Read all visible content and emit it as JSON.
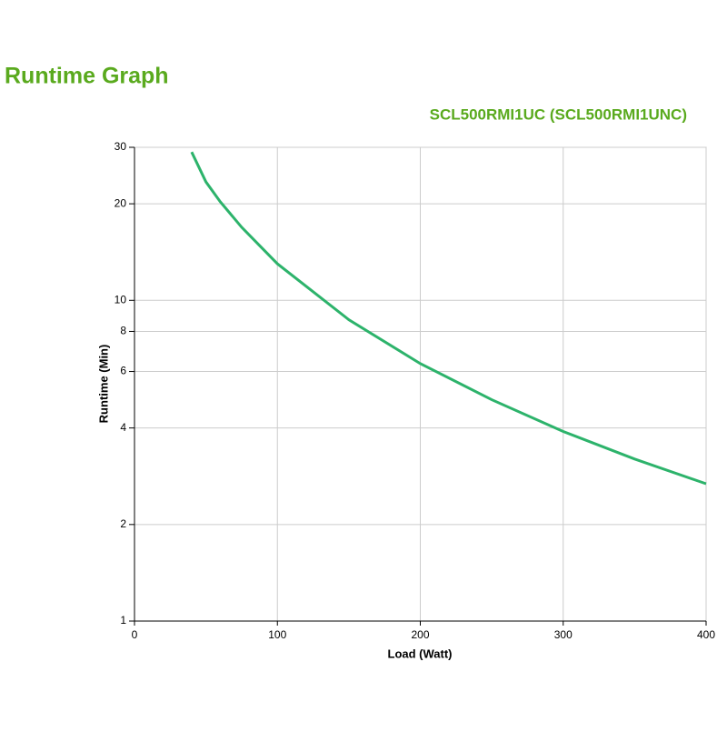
{
  "chart_data": {
    "type": "line",
    "title": "Runtime Graph",
    "subtitle": "SCL500RMI1UC (SCL500RMI1UNC)",
    "x_label": "Load (Watt)",
    "y_label": "Runtime (Min)",
    "x": [
      40,
      50,
      60,
      75,
      100,
      150,
      200,
      250,
      300,
      350,
      400
    ],
    "values": [
      29,
      23.4,
      20.3,
      16.9,
      13,
      8.7,
      6.35,
      4.9,
      3.9,
      3.2,
      2.68
    ],
    "color": "#2db36b",
    "title_color": "#5aaa1e",
    "xlim": [
      0,
      400
    ],
    "xticks": [
      0,
      100,
      200,
      300,
      400
    ],
    "ylim": [
      1,
      30
    ],
    "yticks": [
      1,
      2,
      4,
      6,
      8,
      10,
      20,
      30
    ],
    "y_log": true,
    "grid": true
  }
}
